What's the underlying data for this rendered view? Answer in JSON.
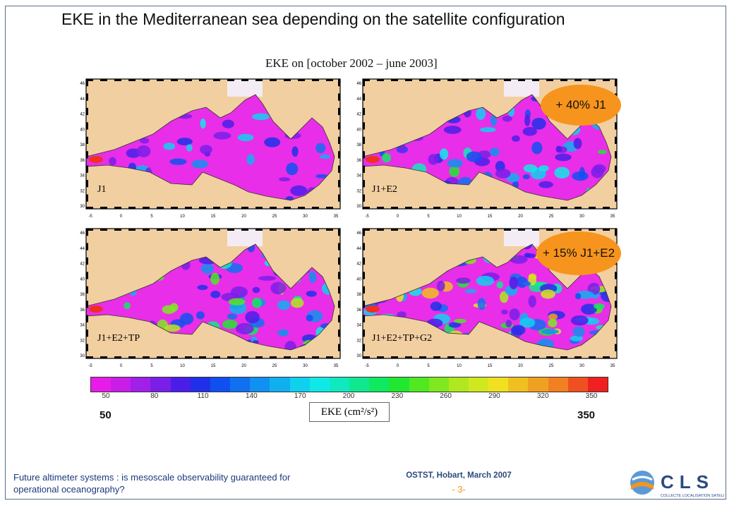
{
  "slide": {
    "title": "EKE in the Mediterranean sea depending on the satellite configuration"
  },
  "figure": {
    "title": "EKE on [october 2002 – june 2003]",
    "panels": [
      {
        "label": "J1",
        "bubble": ""
      },
      {
        "label": "J1+E2",
        "bubble": "+ 40% J1"
      },
      {
        "label": "J1+E2+TP",
        "bubble": ""
      },
      {
        "label": "J1+E2+TP+G2",
        "bubble": "+ 15% J1+E2"
      }
    ],
    "lat_ticks": [
      "46",
      "44",
      "42",
      "40",
      "38",
      "36",
      "34",
      "32",
      "30"
    ],
    "lon_ticks": [
      "-5",
      "0",
      "5",
      "10",
      "15",
      "20",
      "25",
      "30",
      "35"
    ]
  },
  "colorbar": {
    "ticks": [
      "50",
      "80",
      "110",
      "140",
      "170",
      "200",
      "230",
      "260",
      "290",
      "320",
      "350"
    ],
    "min_label": "50",
    "max_label": "350",
    "unit": "EKE (cm²/s²)",
    "colors": [
      "#e81ce8",
      "#c81ee8",
      "#a020e8",
      "#7a1ee8",
      "#4a1ee8",
      "#2030e8",
      "#1050f0",
      "#1070f0",
      "#1090f0",
      "#10b0f0",
      "#10d0f0",
      "#10e8e8",
      "#10e8c0",
      "#10e890",
      "#10e860",
      "#20e830",
      "#50e820",
      "#80e820",
      "#b0e820",
      "#d0e820",
      "#f0e020",
      "#f0c020",
      "#f0a020",
      "#f08020",
      "#f05020",
      "#f02020"
    ]
  },
  "footer": {
    "left": "Future altimeter systems : is mesoscale observability guaranteed for operational oceanography?",
    "center": "OSTST, Hobart, March 2007",
    "page": "- 3-",
    "logo_text": "CLS",
    "logo_subtext": "COLLECTE LOCALISATION SATELLITES"
  },
  "colors": {
    "land": "#f2cfa0",
    "sea_base": "#e82ee8",
    "accent_orange": "#f7941d",
    "footer_blue": "#1b3a7a"
  }
}
